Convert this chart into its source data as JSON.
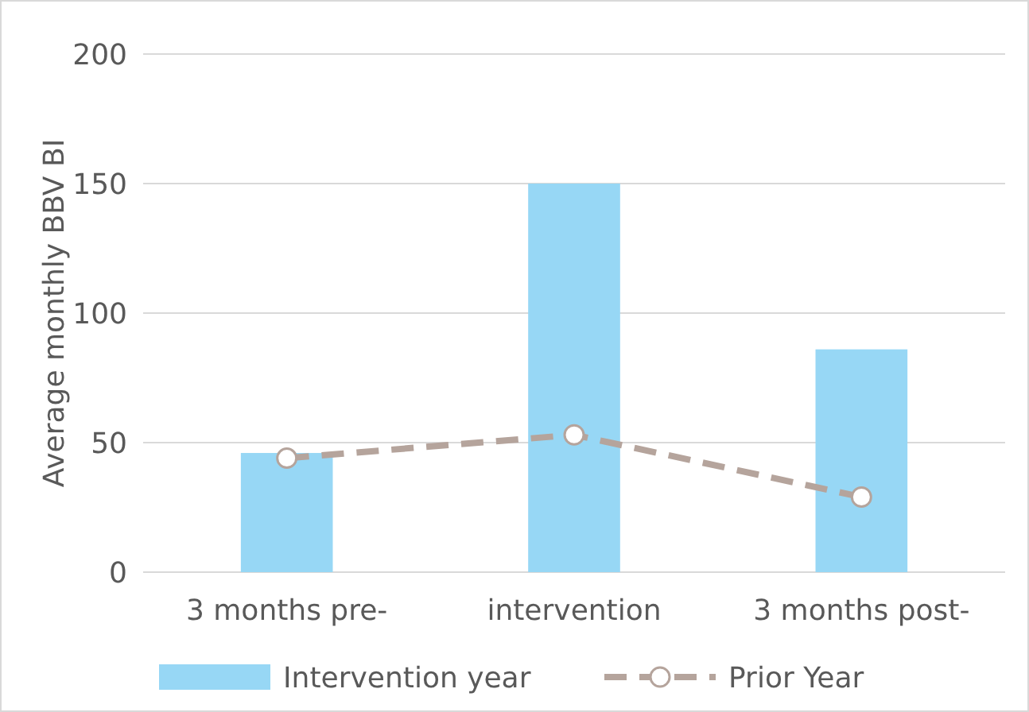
{
  "chart_data": {
    "type": "bar",
    "ylabel": "Average monthly BBV BI",
    "categories": [
      "3 months pre-",
      "intervention",
      "3 months post-"
    ],
    "series": [
      {
        "name": "Intervention year",
        "color": "#97d7f5",
        "values": [
          46,
          150,
          86
        ]
      },
      {
        "name": "Prior Year",
        "type": "line",
        "color": "#b5a49c",
        "values": [
          44,
          53,
          29
        ],
        "marker": "circle",
        "line_style": "dashed"
      }
    ],
    "ylim": [
      0,
      200
    ],
    "yticks": [
      0,
      50,
      100,
      150,
      200
    ],
    "grid": "y",
    "legend": "bottom"
  }
}
